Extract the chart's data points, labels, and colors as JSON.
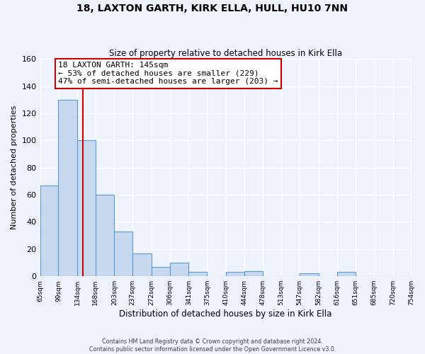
{
  "title": "18, LAXTON GARTH, KIRK ELLA, HULL, HU10 7NN",
  "subtitle": "Size of property relative to detached houses in Kirk Ella",
  "xlabel": "Distribution of detached houses by size in Kirk Ella",
  "ylabel": "Number of detached properties",
  "bar_heights": [
    67,
    130,
    100,
    60,
    33,
    17,
    7,
    10,
    3,
    0,
    3,
    4,
    0,
    0,
    2,
    0,
    3,
    0,
    0,
    0
  ],
  "bin_edges": [
    65,
    99,
    134,
    168,
    203,
    237,
    272,
    306,
    341,
    375,
    410,
    444,
    478,
    513,
    547,
    582,
    616,
    651,
    685,
    720,
    754
  ],
  "tick_labels": [
    "65sqm",
    "99sqm",
    "134sqm",
    "168sqm",
    "203sqm",
    "237sqm",
    "272sqm",
    "306sqm",
    "341sqm",
    "375sqm",
    "410sqm",
    "444sqm",
    "478sqm",
    "513sqm",
    "547sqm",
    "582sqm",
    "616sqm",
    "651sqm",
    "685sqm",
    "720sqm",
    "754sqm"
  ],
  "bar_color": "#c6d9ee",
  "bar_edge_color": "#5b9bd5",
  "vline_x": 145,
  "vline_color": "#cc0000",
  "ylim": [
    0,
    160
  ],
  "yticks": [
    0,
    20,
    40,
    60,
    80,
    100,
    120,
    140,
    160
  ],
  "annotation_title": "18 LAXTON GARTH: 145sqm",
  "annotation_line1": "← 53% of detached houses are smaller (229)",
  "annotation_line2": "47% of semi-detached houses are larger (203) →",
  "annotation_box_facecolor": "#ffffff",
  "annotation_box_edgecolor": "#cc0000",
  "footer_line1": "Contains HM Land Registry data © Crown copyright and database right 2024.",
  "footer_line2": "Contains public sector information licensed under the Open Government Licence v3.0.",
  "background_color": "#eef2fb",
  "grid_color": "#ffffff",
  "figsize": [
    6.0,
    5.0
  ],
  "dpi": 100
}
